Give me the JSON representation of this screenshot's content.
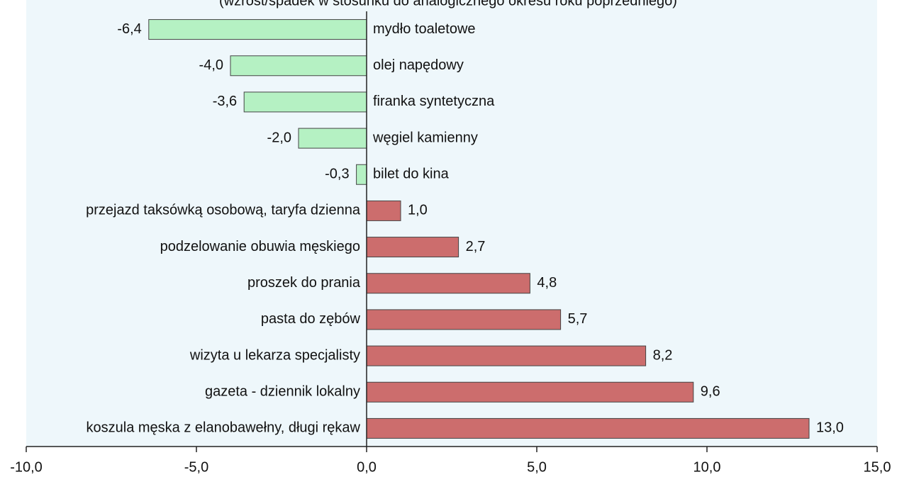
{
  "chart_data": {
    "type": "barh",
    "subtitle": "(wzrost/spadek w stosunku do analogicznego okresu roku poprzedniego)",
    "categories": [
      "mydło toaletowe",
      "olej napędowy",
      "firanka syntetyczna",
      "węgiel kamienny",
      "bilet do kina",
      "przejazd taksówką osobową, taryfa dzienna",
      "podzelowanie obuwia męskiego",
      "proszek do prania",
      "pasta do zębów",
      "wizyta u lekarza specjalisty",
      "gazeta - dziennik lokalny",
      "koszula męska z elanobawełny, długi rękaw"
    ],
    "values": [
      -6.4,
      -4.0,
      -3.6,
      -2.0,
      -0.3,
      1.0,
      2.7,
      4.8,
      5.7,
      8.2,
      9.6,
      13.0
    ],
    "value_labels": [
      "-6,4",
      "-4,0",
      "-3,6",
      "-2,0",
      "-0,3",
      "1,0",
      "2,7",
      "4,8",
      "5,7",
      "8,2",
      "9,6",
      "13,0"
    ],
    "negative_color": "#b5f1c3",
    "positive_color": "#cc6d6d",
    "xlim": [
      -10,
      15
    ],
    "xticks": [
      {
        "value": -10,
        "label": "-10,0"
      },
      {
        "value": -5,
        "label": "-5,0"
      },
      {
        "value": 0,
        "label": "0,0"
      },
      {
        "value": 5,
        "label": "5,0"
      },
      {
        "value": 10,
        "label": "10,0"
      },
      {
        "value": 15,
        "label": "15,0"
      }
    ]
  }
}
